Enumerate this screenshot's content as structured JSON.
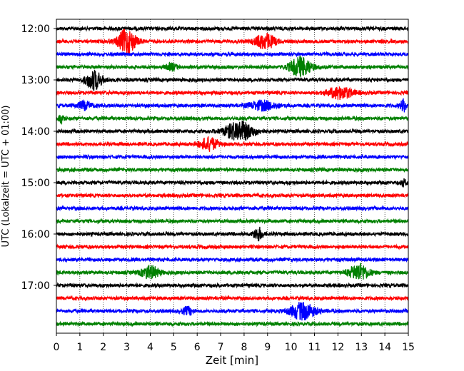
{
  "chart_data": {
    "type": "line",
    "subtype": "helicorder",
    "title": "",
    "xlabel": "Zeit  [min]",
    "ylabel": "UTC (Lokalzeit = UTC + 01:00)",
    "xlim": [
      0,
      15
    ],
    "x_ticks": [
      "0",
      "1",
      "2",
      "3",
      "4",
      "5",
      "6",
      "7",
      "8",
      "9",
      "10",
      "11",
      "12",
      "13",
      "14",
      "15"
    ],
    "y_tick_labels": [
      "12:00",
      "13:00",
      "14:00",
      "15:00",
      "16:00",
      "17:00"
    ],
    "grid": "vertical dotted",
    "trace_interval_minutes": 15,
    "first_trace": "12:00",
    "trace_count": 24,
    "colors": [
      "#000000",
      "#ff0000",
      "#0000ff",
      "#008000"
    ],
    "events": [
      {
        "trace": 1,
        "center_min": 3.0,
        "amplitude": 0.95,
        "duration_min": 1.0
      },
      {
        "trace": 1,
        "center_min": 8.9,
        "amplitude": 0.6,
        "duration_min": 1.1
      },
      {
        "trace": 3,
        "center_min": 10.4,
        "amplitude": 0.75,
        "duration_min": 1.2
      },
      {
        "trace": 3,
        "center_min": 4.9,
        "amplitude": 0.25,
        "duration_min": 0.6
      },
      {
        "trace": 4,
        "center_min": 1.6,
        "amplitude": 0.75,
        "duration_min": 0.9
      },
      {
        "trace": 5,
        "center_min": 12.1,
        "amplitude": 0.45,
        "duration_min": 1.4
      },
      {
        "trace": 6,
        "center_min": 8.8,
        "amplitude": 0.35,
        "duration_min": 1.6
      },
      {
        "trace": 6,
        "center_min": 14.8,
        "amplitude": 0.45,
        "duration_min": 0.4
      },
      {
        "trace": 6,
        "center_min": 1.2,
        "amplitude": 0.3,
        "duration_min": 0.8
      },
      {
        "trace": 7,
        "center_min": 0.2,
        "amplitude": 0.35,
        "duration_min": 0.3
      },
      {
        "trace": 8,
        "center_min": 7.8,
        "amplitude": 0.75,
        "duration_min": 1.6
      },
      {
        "trace": 9,
        "center_min": 6.5,
        "amplitude": 0.5,
        "duration_min": 1.0
      },
      {
        "trace": 12,
        "center_min": 14.8,
        "amplitude": 0.25,
        "duration_min": 0.3
      },
      {
        "trace": 16,
        "center_min": 8.6,
        "amplitude": 0.5,
        "duration_min": 0.5
      },
      {
        "trace": 19,
        "center_min": 4.0,
        "amplitude": 0.5,
        "duration_min": 1.0
      },
      {
        "trace": 19,
        "center_min": 12.9,
        "amplitude": 0.65,
        "duration_min": 1.1
      },
      {
        "trace": 22,
        "center_min": 10.5,
        "amplitude": 0.65,
        "duration_min": 1.4
      },
      {
        "trace": 22,
        "center_min": 5.6,
        "amplitude": 0.3,
        "duration_min": 0.6
      }
    ]
  }
}
